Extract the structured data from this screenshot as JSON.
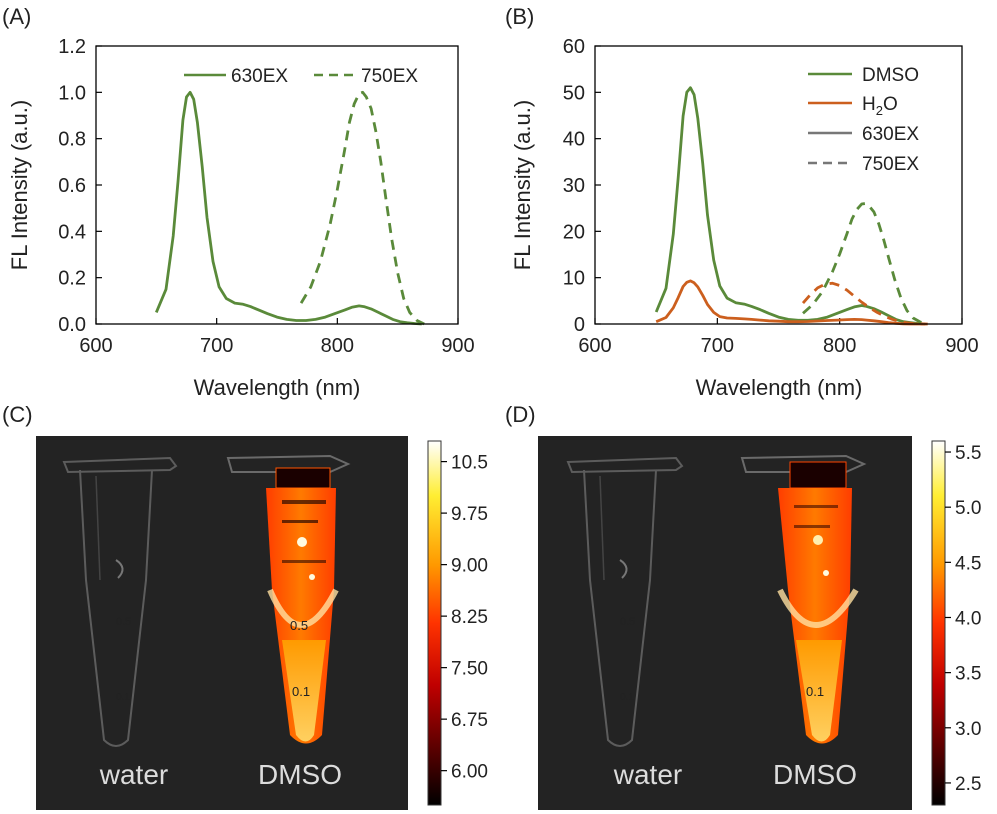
{
  "panels": {
    "a": "(A)",
    "b": "(B)",
    "c": "(C)",
    "d": "(D)"
  },
  "chart_data": [
    {
      "type": "line",
      "panel": "(A)",
      "xlabel": "Wavelength (nm)",
      "ylabel": "FL Intensity (a.u.)",
      "xlim": [
        600,
        900
      ],
      "ylim": [
        0,
        1.2
      ],
      "xticks": [
        "600",
        "700",
        "800",
        "900"
      ],
      "yticks": [
        "0.0",
        "0.2",
        "0.4",
        "0.6",
        "0.8",
        "1.0",
        "1.2"
      ],
      "grid": false,
      "legend": "top",
      "series": [
        {
          "name": "630EX",
          "color": "#5a8a3a",
          "dash": "solid",
          "x": [
            650,
            658,
            664,
            668,
            672,
            675,
            678,
            681,
            684,
            688,
            692,
            697,
            702,
            708,
            715,
            722,
            728,
            735,
            742,
            750,
            758,
            766,
            774,
            782,
            790,
            798,
            806,
            812,
            818,
            822,
            828,
            834,
            840,
            846,
            852,
            858,
            864,
            870
          ],
          "y": [
            0.05,
            0.15,
            0.38,
            0.62,
            0.88,
            0.98,
            1.0,
            0.97,
            0.87,
            0.68,
            0.46,
            0.27,
            0.16,
            0.11,
            0.09,
            0.085,
            0.075,
            0.06,
            0.045,
            0.03,
            0.02,
            0.015,
            0.015,
            0.02,
            0.03,
            0.045,
            0.06,
            0.072,
            0.078,
            0.075,
            0.065,
            0.05,
            0.035,
            0.02,
            0.01,
            0.005,
            0.002,
            0.0
          ]
        },
        {
          "name": "750EX",
          "color": "#5a8a3a",
          "dash": "dashed",
          "x": [
            770,
            778,
            786,
            794,
            800,
            806,
            810,
            814,
            818,
            821,
            824,
            828,
            832,
            836,
            840,
            845,
            850,
            855,
            860,
            866,
            872
          ],
          "y": [
            0.09,
            0.16,
            0.27,
            0.43,
            0.58,
            0.75,
            0.87,
            0.95,
            0.995,
            1.0,
            0.98,
            0.93,
            0.83,
            0.7,
            0.55,
            0.37,
            0.22,
            0.11,
            0.05,
            0.015,
            0.0
          ]
        }
      ]
    },
    {
      "type": "line",
      "panel": "(B)",
      "xlabel": "Wavelength (nm)",
      "ylabel": "FL Intensity (a.u.)",
      "xlim": [
        600,
        900
      ],
      "ylim": [
        0,
        60
      ],
      "xticks": [
        "600",
        "700",
        "800",
        "900"
      ],
      "yticks": [
        "0",
        "10",
        "20",
        "30",
        "40",
        "50",
        "60"
      ],
      "grid": false,
      "legend": "top-right",
      "legend_entries": [
        {
          "text": "DMSO",
          "color": "#5a8a3a",
          "dash": "solid"
        },
        {
          "text": "H",
          "sub": "2",
          "tail": "O",
          "color": "#cc5f1e",
          "dash": "solid"
        },
        {
          "text": "630EX",
          "color": "#777777",
          "dash": "solid"
        },
        {
          "text": "750EX",
          "color": "#777777",
          "dash": "dashed"
        }
      ],
      "series": [
        {
          "color": "#5a8a3a",
          "dash": "solid",
          "x": [
            650,
            658,
            664,
            668,
            672,
            675,
            678,
            681,
            684,
            688,
            692,
            697,
            702,
            708,
            715,
            722,
            728,
            735,
            742,
            750,
            758,
            766,
            774,
            782,
            790,
            798,
            806,
            812,
            818,
            822,
            828,
            834,
            840,
            846,
            852,
            858,
            864,
            870
          ],
          "y": [
            2.6,
            7.7,
            19.4,
            31.6,
            44.9,
            50.0,
            51.0,
            49.5,
            44.4,
            34.7,
            23.5,
            13.8,
            8.2,
            5.6,
            4.6,
            4.3,
            3.8,
            3.1,
            2.3,
            1.5,
            1.0,
            0.8,
            0.8,
            1.0,
            1.5,
            2.3,
            3.1,
            3.7,
            4.0,
            3.8,
            3.3,
            2.6,
            1.8,
            1.0,
            0.5,
            0.3,
            0.1,
            0.0
          ]
        },
        {
          "color": "#cc5f1e",
          "dash": "solid",
          "x": [
            650,
            658,
            664,
            668,
            672,
            675,
            678,
            681,
            684,
            688,
            692,
            697,
            702,
            708,
            715,
            722,
            728,
            735,
            742,
            750,
            758,
            766,
            774,
            782,
            790,
            798,
            806,
            812,
            818,
            822,
            828,
            834,
            840,
            846,
            852,
            858,
            864,
            870
          ],
          "y": [
            0.5,
            1.4,
            3.5,
            5.7,
            8.1,
            9.0,
            9.3,
            8.9,
            8.0,
            6.2,
            4.2,
            2.5,
            1.6,
            1.3,
            1.2,
            1.1,
            1.0,
            0.85,
            0.7,
            0.6,
            0.5,
            0.5,
            0.55,
            0.65,
            0.75,
            0.85,
            0.95,
            1.0,
            0.95,
            0.85,
            0.7,
            0.5,
            0.3,
            0.15,
            0.05,
            0.0,
            0.0,
            0.0
          ]
        },
        {
          "color": "#5a8a3a",
          "dash": "dashed",
          "x": [
            770,
            778,
            786,
            794,
            800,
            806,
            810,
            814,
            818,
            821,
            824,
            828,
            832,
            836,
            840,
            845,
            850,
            855,
            860,
            866,
            872
          ],
          "y": [
            2.3,
            4.2,
            7.0,
            11.2,
            15.1,
            19.5,
            22.6,
            24.7,
            25.9,
            26.0,
            25.5,
            24.2,
            21.6,
            18.2,
            14.3,
            9.6,
            5.7,
            2.9,
            1.3,
            0.4,
            0.0
          ]
        },
        {
          "color": "#cc5f1e",
          "dash": "dashed",
          "x": [
            770,
            776,
            782,
            788,
            794,
            800,
            806,
            812,
            818,
            824,
            830,
            836,
            842,
            848,
            854,
            860,
            866,
            872
          ],
          "y": [
            4.5,
            6.3,
            7.8,
            8.6,
            8.8,
            8.3,
            7.3,
            6.0,
            4.7,
            3.6,
            2.6,
            1.8,
            1.1,
            0.6,
            0.3,
            0.1,
            0.0,
            0.0
          ]
        }
      ]
    },
    {
      "type": "heatmap",
      "panel": "(C)",
      "labels": [
        "water",
        "DMSO"
      ],
      "colorbar_ticks": [
        "10.5",
        "9.75",
        "9.00",
        "8.25",
        "7.50",
        "6.75",
        "6.00"
      ],
      "colorbar_range": [
        5.5,
        10.8
      ],
      "tube_marks": [
        "0.5",
        "0.1"
      ]
    },
    {
      "type": "heatmap",
      "panel": "(D)",
      "labels": [
        "water",
        "DMSO"
      ],
      "colorbar_ticks": [
        "5.5",
        "5.0",
        "4.5",
        "4.0",
        "3.5",
        "3.0",
        "2.5"
      ],
      "colorbar_range": [
        2.3,
        5.6
      ],
      "tube_marks": [
        "0.1"
      ]
    }
  ]
}
